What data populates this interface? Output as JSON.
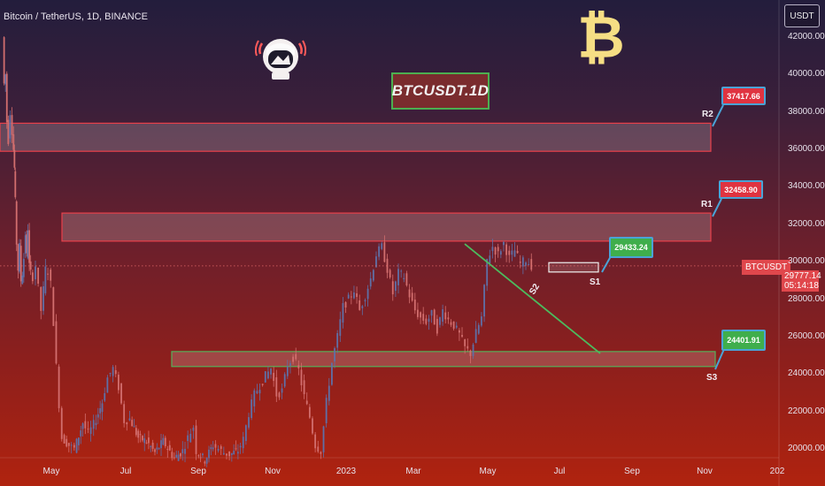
{
  "header": {
    "symbol": "Bitcoin / TetherUS, 1D, BINANCE",
    "currency_button": "USDT"
  },
  "annotations": {
    "title_box": "BTCUSDT.1D",
    "logo_glyph": "₿",
    "r2": {
      "label": "R2",
      "price": "37417.66"
    },
    "r1": {
      "label": "R1",
      "price": "32458.90"
    },
    "s1": {
      "label": "S1",
      "price": "29433.24"
    },
    "s2": {
      "label": "S2"
    },
    "s3": {
      "label": "S3",
      "price": "24401.91"
    }
  },
  "price_tag": {
    "ticker": "BTCUSDT",
    "price": "29777.14",
    "countdown": "05:14:18",
    "color": "#e0474c"
  },
  "colors": {
    "zone_border": "#e8404a",
    "s3_border": "#56b05a",
    "trend": "#4cbb5e",
    "callout_border": "#4aa3d6"
  },
  "icons": [
    "astronaut-avatar-icon",
    "bitcoin-logo-icon"
  ],
  "chart_data": {
    "type": "candlestick",
    "y_axis": {
      "ticks": [
        "42000.00",
        "40000.00",
        "38000.00",
        "36000.00",
        "34000.00",
        "32000.00",
        "30000.00",
        "28000.00",
        "26000.00",
        "24000.00",
        "22000.00",
        "20000.00"
      ],
      "range": [
        19800,
        42500
      ]
    },
    "x_axis": {
      "ticks": [
        "May",
        "Jul",
        "Sep",
        "Nov",
        "2023",
        "Mar",
        "May",
        "Jul",
        "Sep",
        "Nov",
        "202"
      ]
    },
    "zones": [
      {
        "name": "R2",
        "low": 35900,
        "high": 37400
      },
      {
        "name": "R1",
        "low": 31100,
        "high": 32600
      },
      {
        "name": "S1",
        "low": 29450,
        "high": 29950
      },
      {
        "name": "S3",
        "low": 24400,
        "high": 25200
      }
    ],
    "trendline": {
      "from": [
        0.0,
        30900
      ],
      "to": [
        1.0,
        25100
      ]
    },
    "last_price": 29777.14,
    "path": [
      [
        0,
        42000
      ],
      [
        0.04,
        39500
      ],
      [
        0.1,
        40000
      ],
      [
        0.14,
        37500
      ],
      [
        0.2,
        36500
      ],
      [
        0.27,
        38000
      ],
      [
        0.34,
        37000
      ],
      [
        0.38,
        36000
      ],
      [
        0.41,
        35000
      ],
      [
        0.44,
        33200
      ],
      [
        0.5,
        31000
      ],
      [
        0.55,
        29600
      ],
      [
        0.6,
        30800
      ],
      [
        0.66,
        29000
      ],
      [
        0.7,
        29400
      ],
      [
        0.76,
        30200
      ],
      [
        0.82,
        31500
      ],
      [
        0.86,
        30300
      ],
      [
        0.9,
        31800
      ],
      [
        0.96,
        29800
      ],
      [
        1,
        29400
      ],
      [
        1.1,
        29200
      ],
      [
        1.2,
        29800
      ],
      [
        1.4,
        27400
      ],
      [
        1.55,
        29600
      ],
      [
        1.65,
        29500
      ],
      [
        1.75,
        28800
      ],
      [
        1.85,
        26800
      ],
      [
        1.95,
        24400
      ],
      [
        2.05,
        22400
      ],
      [
        2.15,
        20600
      ],
      [
        2.4,
        20200
      ],
      [
        2.6,
        20000
      ],
      [
        2.9,
        21400
      ],
      [
        3.1,
        20800
      ],
      [
        3.3,
        21300
      ],
      [
        3.6,
        22500
      ],
      [
        3.8,
        23800
      ],
      [
        4.0,
        24300
      ],
      [
        4.2,
        23300
      ],
      [
        4.4,
        21500
      ],
      [
        4.6,
        21600
      ],
      [
        4.9,
        20600
      ],
      [
        5.2,
        20400
      ],
      [
        5.5,
        19800
      ],
      [
        5.8,
        20400
      ],
      [
        6.2,
        19500
      ],
      [
        6.5,
        19900
      ],
      [
        6.7,
        20600
      ],
      [
        6.9,
        21200
      ],
      [
        7.0,
        19900
      ],
      [
        7.3,
        19400
      ],
      [
        7.6,
        20200
      ],
      [
        7.8,
        20000
      ],
      [
        8.0,
        19800
      ],
      [
        8.2,
        19700
      ],
      [
        8.5,
        19900
      ],
      [
        8.7,
        20500
      ],
      [
        8.9,
        21900
      ],
      [
        9.1,
        22900
      ],
      [
        9.3,
        23400
      ],
      [
        9.5,
        23900
      ],
      [
        9.7,
        24300
      ],
      [
        9.9,
        22900
      ],
      [
        10.1,
        23100
      ],
      [
        10.3,
        24500
      ],
      [
        10.5,
        24900
      ],
      [
        10.7,
        24200
      ],
      [
        10.9,
        22800
      ],
      [
        11.1,
        21700
      ],
      [
        11.3,
        20200
      ],
      [
        11.5,
        19900
      ],
      [
        11.7,
        22500
      ],
      [
        11.9,
        24600
      ],
      [
        12.1,
        26000
      ],
      [
        12.3,
        27600
      ],
      [
        12.5,
        28000
      ],
      [
        12.7,
        28500
      ],
      [
        12.9,
        27400
      ],
      [
        13.1,
        28200
      ],
      [
        13.3,
        29100
      ],
      [
        13.5,
        30400
      ],
      [
        13.7,
        30800
      ],
      [
        13.9,
        29600
      ],
      [
        14.1,
        28300
      ],
      [
        14.3,
        29400
      ],
      [
        14.5,
        29200
      ],
      [
        14.7,
        28200
      ],
      [
        14.9,
        27400
      ],
      [
        15.1,
        27000
      ],
      [
        15.3,
        26800
      ],
      [
        15.5,
        27200
      ],
      [
        15.7,
        26400
      ],
      [
        15.9,
        27400
      ],
      [
        16.1,
        26900
      ],
      [
        16.3,
        26600
      ],
      [
        16.5,
        26100
      ],
      [
        16.7,
        25400
      ],
      [
        16.9,
        25100
      ],
      [
        17.1,
        26200
      ],
      [
        17.3,
        27000
      ],
      [
        17.5,
        30100
      ],
      [
        17.7,
        30800
      ],
      [
        17.9,
        30400
      ],
      [
        18.1,
        31000
      ],
      [
        18.3,
        30200
      ],
      [
        18.5,
        30600
      ],
      [
        18.7,
        29900
      ],
      [
        18.9,
        30100
      ],
      [
        19.1,
        29800
      ]
    ]
  }
}
